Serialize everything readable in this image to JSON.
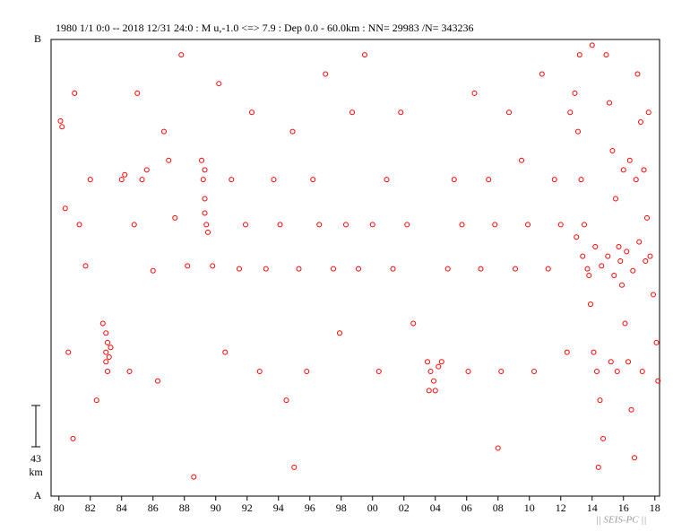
{
  "chart_data": {
    "type": "scatter",
    "title": "1980 1/1 0:0 -- 2018 12/31 24:0  : M u,-1.0 <=> 7.9   :  Dep 0.0 - 60.0km :  NN= 29983 /N= 343236",
    "y_start_label": "A",
    "y_end_label": "B",
    "scale_bar": {
      "value": 43,
      "unit": "km"
    },
    "footer": "|| SEIS-PC ||",
    "color": "#ff0000",
    "xlim": [
      1979.5,
      2018.3
    ],
    "ylim": [
      0,
      476
    ],
    "xticks": [
      {
        "value": 1980,
        "label": "80"
      },
      {
        "value": 1982,
        "label": "82"
      },
      {
        "value": 1984,
        "label": "84"
      },
      {
        "value": 1986,
        "label": "86"
      },
      {
        "value": 1988,
        "label": "88"
      },
      {
        "value": 1990,
        "label": "90"
      },
      {
        "value": 1992,
        "label": "92"
      },
      {
        "value": 1994,
        "label": "94"
      },
      {
        "value": 1996,
        "label": "96"
      },
      {
        "value": 1998,
        "label": "98"
      },
      {
        "value": 2000,
        "label": "00"
      },
      {
        "value": 2002,
        "label": "02"
      },
      {
        "value": 2004,
        "label": "04"
      },
      {
        "value": 2006,
        "label": "06"
      },
      {
        "value": 2008,
        "label": "08"
      },
      {
        "value": 2010,
        "label": "10"
      },
      {
        "value": 2012,
        "label": "12"
      },
      {
        "value": 2014,
        "label": "14"
      },
      {
        "value": 2016,
        "label": "16"
      },
      {
        "value": 2018,
        "label": "18"
      }
    ],
    "x": [
      1980.1,
      1980.2,
      1980.4,
      1980.6,
      1981.0,
      1981.3,
      1981.7,
      1982.0,
      1982.4,
      1982.8,
      1983.0,
      1983.0,
      1983.1,
      1983.1,
      1983.2,
      1983.3,
      1983.0,
      1984.0,
      1984.2,
      1984.5,
      1984.8,
      1985.0,
      1985.3,
      1985.6,
      1986.0,
      1986.3,
      1986.7,
      1987.0,
      1987.4,
      1987.8,
      1988.2,
      1988.6,
      1989.1,
      1989.2,
      1989.3,
      1989.3,
      1989.4,
      1989.5,
      1989.3,
      1989.8,
      1990.2,
      1990.6,
      1991.0,
      1991.5,
      1991.9,
      1992.3,
      1992.8,
      1993.2,
      1993.7,
      1994.1,
      1994.5,
      1994.9,
      1995.3,
      1995.8,
      1996.2,
      1996.6,
      1997.0,
      1997.5,
      1997.9,
      1998.3,
      1998.7,
      1999.1,
      1999.5,
      2000.0,
      2000.4,
      2000.9,
      2001.3,
      2001.8,
      2002.2,
      2002.6,
      2003.5,
      2003.7,
      2003.9,
      2004.0,
      2004.2,
      2003.6,
      2004.4,
      2004.8,
      2005.2,
      2005.7,
      2006.1,
      2006.5,
      2006.9,
      2007.4,
      2007.8,
      2008.2,
      2008.7,
      2009.1,
      2009.5,
      2009.9,
      2010.3,
      2010.8,
      2011.2,
      2011.6,
      2012.0,
      2012.4,
      2012.6,
      1980.9,
      1995.0,
      2008.0,
      2012.9,
      2013.1,
      2013.3,
      2013.5,
      2013.7,
      2013.9,
      2014.1,
      2014.3,
      2014.5,
      2014.7,
      2014.9,
      2015.1,
      2015.3,
      2015.5,
      2015.7,
      2015.9,
      2016.1,
      2016.3,
      2016.5,
      2016.7,
      2016.9,
      2017.1,
      2017.3,
      2017.5,
      2017.7,
      2017.9,
      2018.1,
      2018.2,
      2013.0,
      2013.4,
      2013.8,
      2014.2,
      2014.6,
      2015.0,
      2015.4,
      2015.8,
      2016.2,
      2016.6,
      2017.0,
      2017.4,
      2013.2,
      2014.0,
      2014.4,
      2015.2,
      2015.6,
      2016.0,
      2016.4,
      2016.8,
      2017.2,
      2017.6
    ],
    "values": [
      391,
      385,
      300,
      150,
      420,
      283,
      240,
      330,
      100,
      180,
      140,
      150,
      160,
      130,
      145,
      155,
      170,
      330,
      335,
      130,
      283,
      420,
      330,
      340,
      235,
      120,
      380,
      350,
      290,
      460,
      240,
      20,
      350,
      330,
      310,
      295,
      283,
      275,
      340,
      240,
      430,
      150,
      330,
      237,
      283,
      400,
      130,
      237,
      330,
      283,
      100,
      380,
      237,
      130,
      330,
      283,
      440,
      237,
      170,
      283,
      400,
      237,
      460,
      283,
      130,
      330,
      237,
      400,
      283,
      180,
      140,
      130,
      120,
      110,
      135,
      110,
      140,
      237,
      330,
      283,
      130,
      420,
      237,
      330,
      283,
      130,
      400,
      237,
      350,
      283,
      130,
      440,
      237,
      330,
      283,
      150,
      400,
      60,
      30,
      50,
      420,
      380,
      330,
      283,
      237,
      200,
      150,
      130,
      100,
      60,
      460,
      410,
      360,
      310,
      260,
      220,
      180,
      140,
      90,
      40,
      440,
      390,
      340,
      290,
      250,
      210,
      160,
      120,
      270,
      250,
      230,
      260,
      240,
      250,
      230,
      245,
      255,
      235,
      265,
      245,
      460,
      470,
      30,
      140,
      130,
      340,
      350,
      330,
      130,
      400
    ]
  }
}
